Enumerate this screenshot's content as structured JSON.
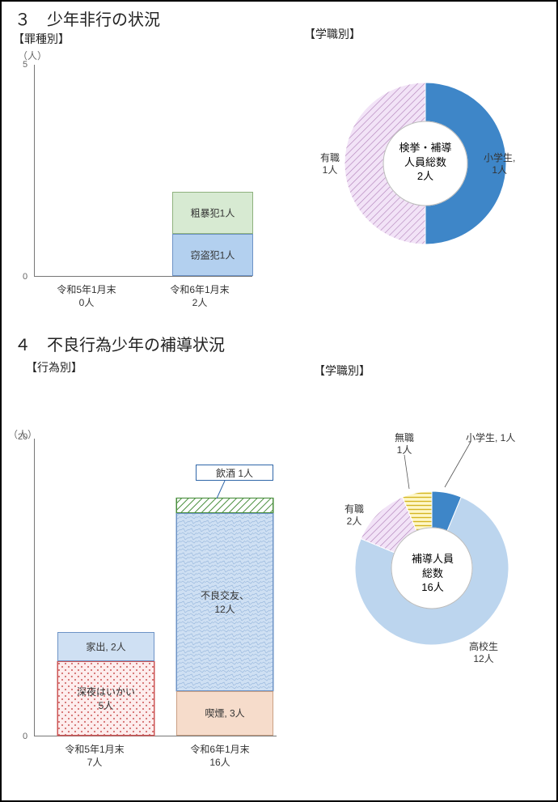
{
  "section3": {
    "title": "３　少年非行の状況",
    "left_subtitle": "【罪種別】",
    "right_subtitle": "【学職別】",
    "bar": {
      "y_axis_unit": "（人）",
      "ymax": 5,
      "ymin": 0,
      "bg": "#ffffff",
      "border": "#888888",
      "categories": [
        {
          "label_line1": "令和5年1月末",
          "label_line2": "0人",
          "stacks": []
        },
        {
          "label_line1": "令和6年1月末",
          "label_line2": "2人",
          "stacks": [
            {
              "label": "窃盗犯1人",
              "value": 1,
              "fill": "#b3d0ef",
              "stroke": "#6d93c6"
            },
            {
              "label": "粗暴犯1人",
              "value": 1,
              "fill": "#d7ead2",
              "stroke": "#8fb27e"
            }
          ]
        }
      ]
    },
    "donut": {
      "center_line1": "検挙・補導",
      "center_line2": "人員総数",
      "center_line3": "2人",
      "slices": [
        {
          "label_line1": "小学生,",
          "label_line2": "1人",
          "value": 1,
          "fill": "#3e86c8",
          "pattern": "none"
        },
        {
          "label_line1": "有職",
          "label_line2": "1人",
          "value": 1,
          "fill": "#e9d7ef",
          "pattern": "diagHatch",
          "patternStroke": "#b07fb8"
        }
      ],
      "outer_r": 100,
      "inner_r": 52
    }
  },
  "section4": {
    "title": "４　不良行為少年の補導状況",
    "left_subtitle": "【行為別】",
    "right_subtitle": "【学職別】",
    "bar": {
      "y_axis_unit": "（人）",
      "ymax": 20,
      "ymin": 0,
      "bg": "#ffffff",
      "border": "#888888",
      "categories": [
        {
          "label_line1": "令和5年1月末",
          "label_line2": "7人",
          "stacks": [
            {
              "label": "深夜はいかい\n5人",
              "value": 5,
              "fill": "#fdeded",
              "stroke": "#c55",
              "pattern": "dots",
              "dotColor": "#c55"
            },
            {
              "label": "家出,  2人",
              "value": 2,
              "fill": "#cfe0f3",
              "stroke": "#6d93c6"
            }
          ]
        },
        {
          "label_line1": "令和6年1月末",
          "label_line2": "16人",
          "stacks": [
            {
              "label": "喫煙,  3人",
              "value": 3,
              "fill": "#f6dccb",
              "stroke": "#caa084"
            },
            {
              "label": "不良交友、\n12人",
              "value": 12,
              "fill": "#cfe0f3",
              "stroke": "#6d93c6",
              "pattern": "crackle"
            },
            {
              "label": "",
              "value": 1,
              "fill": "#ffffff",
              "stroke": "#4a8f3e",
              "pattern": "diagGreen"
            }
          ],
          "callout": {
            "text": "飲酒  1人",
            "border": "#2f66a8"
          }
        }
      ]
    },
    "donut": {
      "center_line1": "補導人員",
      "center_line2": "総数",
      "center_line3": "16人",
      "outer_r": 95,
      "inner_r": 50,
      "slices": [
        {
          "label_line1": "小学生, 1人",
          "value": 1,
          "fill": "#3e86c8"
        },
        {
          "label_line1": "高校生",
          "label_line2": "12人",
          "value": 12,
          "fill": "#bcd5ee"
        },
        {
          "label_line1": "有職",
          "label_line2": "2人",
          "value": 2,
          "fill": "#e5c9ee",
          "pattern": "diagHatch",
          "patternStroke": "#b07fb8"
        },
        {
          "label_line1": "無職",
          "label_line2": "1人",
          "value": 1,
          "fill": "#fff8c9",
          "pattern": "horizYellow",
          "patternStroke": "#d4b522"
        }
      ]
    }
  }
}
